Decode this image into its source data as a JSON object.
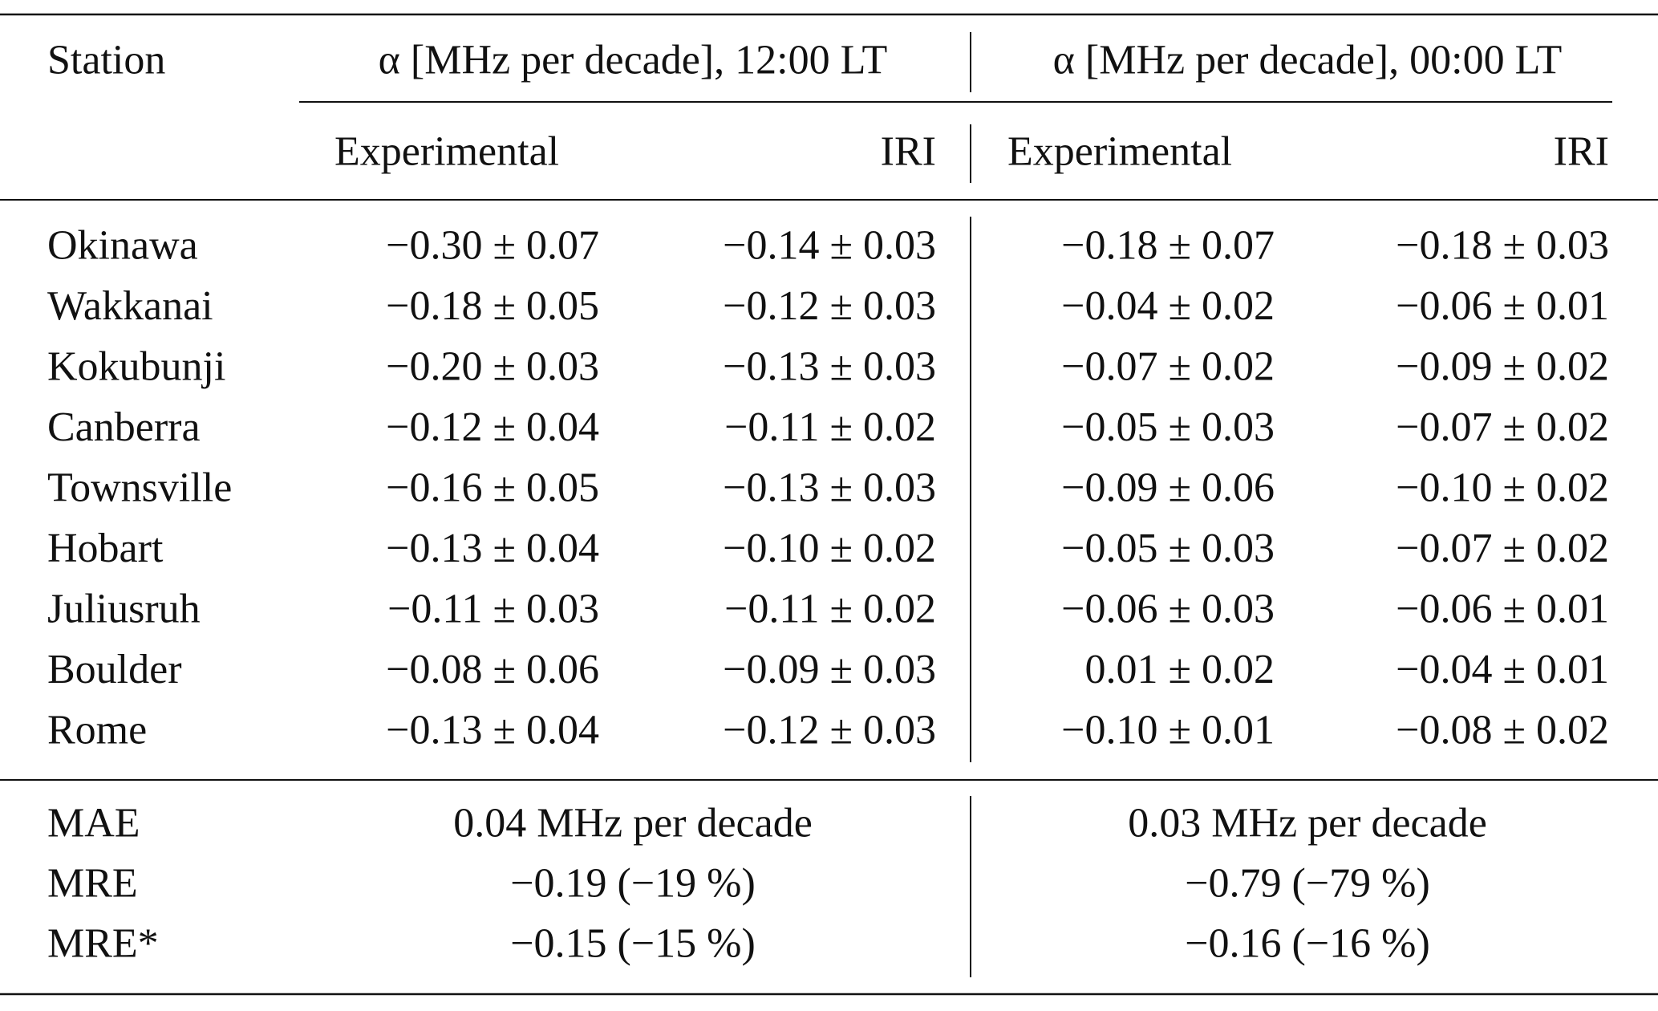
{
  "table": {
    "header": {
      "station": "Station",
      "groups": [
        "α [MHz per decade], 12:00 LT",
        "α [MHz per decade], 00:00 LT"
      ],
      "subheaders": [
        "Experimental",
        "IRI",
        "Experimental",
        "IRI"
      ]
    },
    "rows": [
      [
        "Okinawa",
        "−0.30 ± 0.07",
        "−0.14 ± 0.03",
        "−0.18 ± 0.07",
        "−0.18 ± 0.03"
      ],
      [
        "Wakkanai",
        "−0.18 ± 0.05",
        "−0.12 ± 0.03",
        "−0.04 ± 0.02",
        "−0.06 ± 0.01"
      ],
      [
        "Kokubunji",
        "−0.20 ± 0.03",
        "−0.13 ± 0.03",
        "−0.07 ± 0.02",
        "−0.09 ± 0.02"
      ],
      [
        "Canberra",
        "−0.12 ± 0.04",
        "−0.11 ± 0.02",
        "−0.05 ± 0.03",
        "−0.07 ± 0.02"
      ],
      [
        "Townsville",
        "−0.16 ± 0.05",
        "−0.13 ± 0.03",
        "−0.09 ± 0.06",
        "−0.10 ± 0.02"
      ],
      [
        "Hobart",
        "−0.13 ± 0.04",
        "−0.10 ± 0.02",
        "−0.05 ± 0.03",
        "−0.07 ± 0.02"
      ],
      [
        "Juliusruh",
        "−0.11 ± 0.03",
        "−0.11 ± 0.02",
        "−0.06 ± 0.03",
        "−0.06 ± 0.01"
      ],
      [
        "Boulder",
        "−0.08 ± 0.06",
        "−0.09 ± 0.03",
        "0.01 ± 0.02",
        "−0.04 ± 0.01"
      ],
      [
        "Rome",
        "−0.13 ± 0.04",
        "−0.12 ± 0.03",
        "−0.10 ± 0.01",
        "−0.08 ± 0.02"
      ]
    ],
    "summary": [
      [
        "MAE",
        "0.04 MHz per decade",
        "0.03 MHz per decade"
      ],
      [
        "MRE",
        "−0.19 (−19 %)",
        "−0.79 (−79 %)"
      ],
      [
        "MRE*",
        "−0.15 (−15 %)",
        "−0.16 (−16 %)"
      ]
    ]
  }
}
